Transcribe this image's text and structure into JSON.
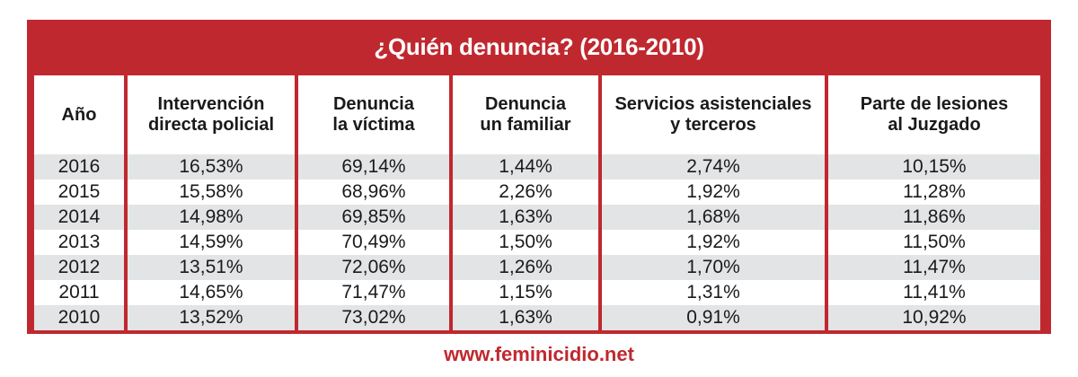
{
  "chart_data": {
    "type": "table",
    "title": "¿Quién denuncia? (2016-2010)",
    "columns": [
      "Año",
      "Intervención directa policial",
      "Denuncia la víctima",
      "Denuncia un familiar",
      "Servicios asistenciales y terceros",
      "Parte de lesiones al Juzgado"
    ],
    "rows": [
      [
        "2016",
        "16,53%",
        "69,14%",
        "1,44%",
        "2,74%",
        "10,15%"
      ],
      [
        "2015",
        "15,58%",
        "68,96%",
        "2,26%",
        "1,92%",
        "11,28%"
      ],
      [
        "2014",
        "14,98%",
        "69,85%",
        "1,63%",
        "1,68%",
        "11,86%"
      ],
      [
        "2013",
        "14,59%",
        "70,49%",
        "1,50%",
        "1,92%",
        "11,50%"
      ],
      [
        "2012",
        "13,51%",
        "72,06%",
        "1,26%",
        "1,70%",
        "11,47%"
      ],
      [
        "2011",
        "14,65%",
        "71,47%",
        "1,15%",
        "1,31%",
        "11,41%"
      ],
      [
        "2010",
        "13,52%",
        "73,02%",
        "1,63%",
        "0,91%",
        "10,92%"
      ]
    ]
  },
  "header_lines": [
    [
      "Año"
    ],
    [
      "Intervención",
      "directa policial"
    ],
    [
      "Denuncia",
      "la víctima"
    ],
    [
      "Denuncia",
      "un familiar"
    ],
    [
      "Servicios asistenciales",
      "y terceros"
    ],
    [
      "Parte de lesiones",
      "al Juzgado"
    ]
  ],
  "footer": {
    "url": "www.feminicidio.net"
  },
  "colors": {
    "accent": "#c0282f",
    "stripe": "#e3e4e6",
    "text": "#1a1a1a"
  }
}
